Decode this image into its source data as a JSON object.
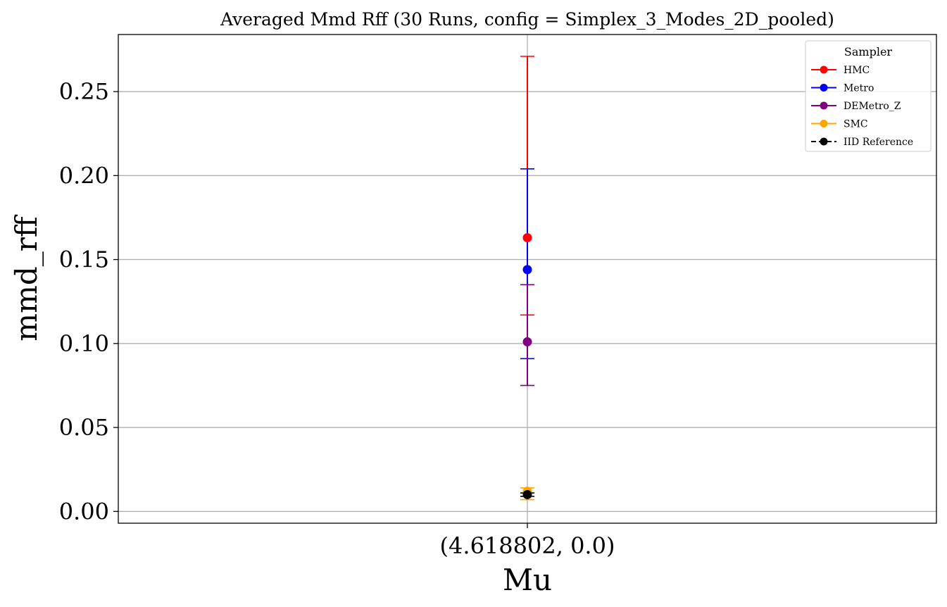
{
  "chart_data": {
    "type": "scatter",
    "title": "Averaged Mmd Rff (30 Runs, config = Simplex_3_Modes_2D_pooled)",
    "xlabel": "Mu",
    "ylabel": "mmd_rff",
    "categories": [
      "(4.618802, 0.0)"
    ],
    "ylim": [
      -0.007,
      0.284
    ],
    "yticks": [
      "0.00",
      "0.05",
      "0.10",
      "0.15",
      "0.20",
      "0.25"
    ],
    "ytick_values": [
      0.0,
      0.05,
      0.1,
      0.15,
      0.2,
      0.25
    ],
    "grid": true,
    "legend": {
      "title": "Sampler",
      "placement": "top-right"
    },
    "series": [
      {
        "name": "HMC",
        "color": "#ff0000",
        "values": [
          0.163
        ],
        "err_low": [
          0.117
        ],
        "err_high": [
          0.271
        ]
      },
      {
        "name": "Metro",
        "color": "#0000ff",
        "values": [
          0.144
        ],
        "err_low": [
          0.091
        ],
        "err_high": [
          0.204
        ]
      },
      {
        "name": "DEMetro_Z",
        "color": "#800080",
        "values": [
          0.101
        ],
        "err_low": [
          0.075
        ],
        "err_high": [
          0.135
        ]
      },
      {
        "name": "SMC",
        "color": "#ffa500",
        "values": [
          0.012
        ],
        "err_low": [
          0.007
        ],
        "err_high": [
          0.014
        ]
      },
      {
        "name": "IID Reference",
        "color": "#000000",
        "values": [
          0.01
        ],
        "err_low": [
          0.009
        ],
        "err_high": [
          0.011
        ],
        "dashed": true
      }
    ]
  }
}
